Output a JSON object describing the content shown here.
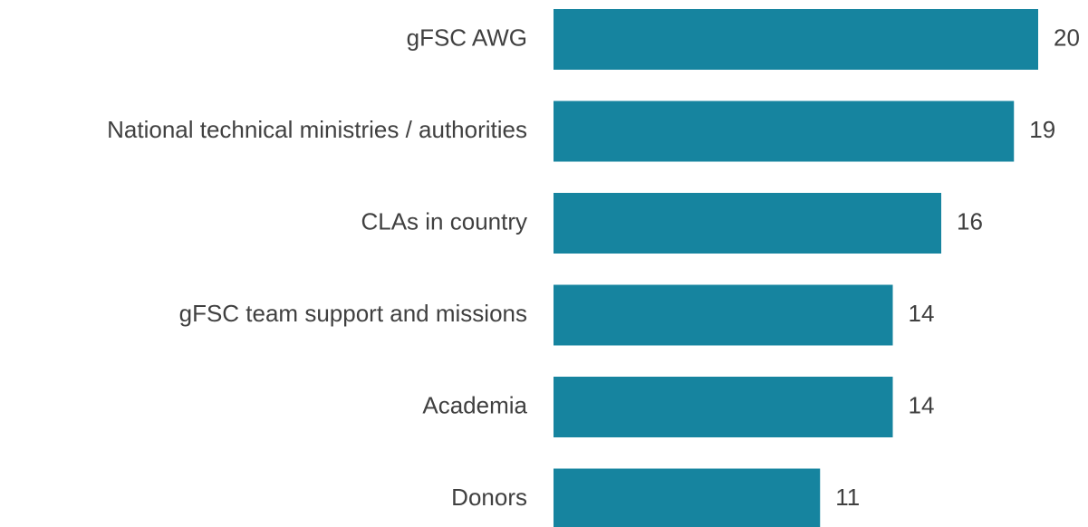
{
  "chart_data": {
    "type": "bar",
    "orientation": "horizontal",
    "categories": [
      "gFSC AWG",
      "National technical ministries / authorities",
      "CLAs in country",
      "gFSC team support and missions",
      "Academia",
      "Donors"
    ],
    "values": [
      20,
      19,
      16,
      14,
      14,
      11
    ],
    "color": "#16849f"
  }
}
